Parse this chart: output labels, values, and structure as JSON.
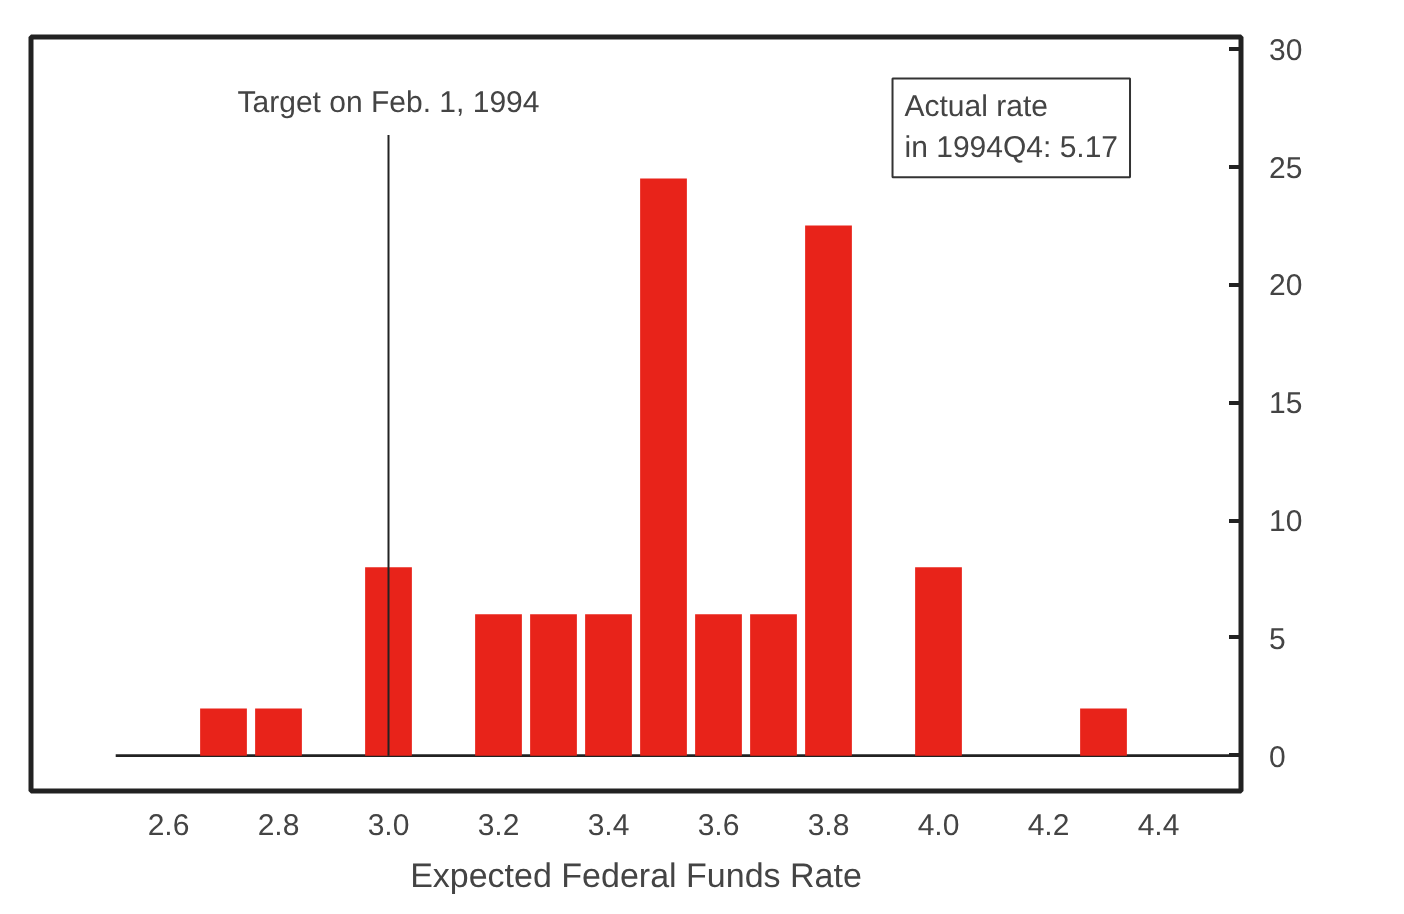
{
  "chart_data": {
    "type": "bar",
    "xlabel": "Expected Federal Funds Rate",
    "x": [
      2.7,
      2.8,
      3.0,
      3.2,
      3.3,
      3.4,
      3.5,
      3.6,
      3.7,
      3.8,
      4.0,
      4.3
    ],
    "series": [
      {
        "color": "#e8231a",
        "values": [
          2,
          2,
          8,
          6,
          6,
          6,
          24.5,
          6,
          6,
          22.5,
          8,
          2
        ]
      }
    ],
    "xlim": [
      2.35,
      4.55
    ],
    "xticks": [
      {
        "value": 2.6,
        "label": "2.6"
      },
      {
        "value": 2.8,
        "label": "2.8"
      },
      {
        "value": 3.0,
        "label": "3.0"
      },
      {
        "value": 3.2,
        "label": "3.2"
      },
      {
        "value": 3.4,
        "label": "3.4"
      },
      {
        "value": 3.6,
        "label": "3.6"
      },
      {
        "value": 3.8,
        "label": "3.8"
      },
      {
        "value": 4.0,
        "label": "4.0"
      },
      {
        "value": 4.2,
        "label": "4.2"
      },
      {
        "value": 4.4,
        "label": "4.4"
      }
    ],
    "ylim": [
      -1.5,
      30.5
    ],
    "yticks": [
      0,
      5,
      10,
      15,
      20,
      25,
      30
    ],
    "ref_lines": [
      {
        "axis": "x",
        "value": 3.0,
        "label": "Target on Feb. 1, 1994"
      }
    ],
    "annotations": [
      "Actual rate\nin 1994Q4: 5.17"
    ],
    "grid": false
  }
}
